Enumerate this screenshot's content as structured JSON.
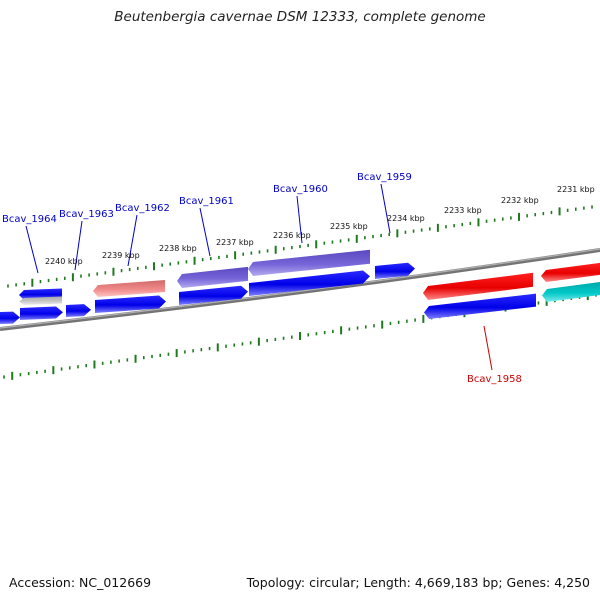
{
  "title": "Beutenbergia cavernae DSM 12333, complete genome",
  "footer": {
    "accession": "Accession: NC_012669",
    "summary": "Topology: circular; Length: 4,669,183 bp; Genes: 4,250"
  },
  "colors": {
    "tick": "#1f7a1f",
    "backbone": "#7a7a7a",
    "forward_gene": "#0000ee",
    "reverse_gene": "#ee0000",
    "slate_gene": "#6a5acd",
    "salmon_gene": "#f08080",
    "silver_gene": "#c0c0c0",
    "cyan_gene": "#00bcbc",
    "label_blue": "#0000cc",
    "label_red": "#cc0000"
  },
  "tick_labels": [
    "2240 kbp",
    "2239 kbp",
    "2238 kbp",
    "2237 kbp",
    "2236 kbp",
    "2235 kbp",
    "2234 kbp",
    "2233 kbp",
    "2232 kbp",
    "2231 kbp"
  ],
  "gene_labels": [
    "Bcav_1964",
    "Bcav_1963",
    "Bcav_1962",
    "Bcav_1961",
    "Bcav_1960",
    "Bcav_1959",
    "Bcav_1958"
  ]
}
